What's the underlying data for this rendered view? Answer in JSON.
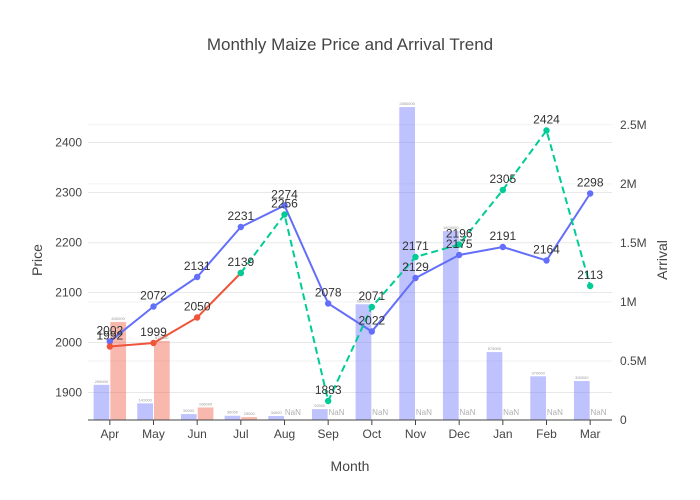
{
  "chart_data": {
    "type": "bar",
    "title": "Monthly Maize Price and Arrival Trend",
    "xlabel": "Month",
    "ylabel": "Price",
    "y2label": "Arrival",
    "categories": [
      "Apr",
      "May",
      "Jun",
      "Jul",
      "Aug",
      "Sep",
      "Oct",
      "Nov",
      "Dec",
      "Jan",
      "Feb",
      "Mar"
    ],
    "ylim": [
      1845,
      2485
    ],
    "y2lim": [
      0,
      2710000
    ],
    "yticks": [
      1900,
      2000,
      2100,
      2200,
      2300,
      2400
    ],
    "y2ticks": [
      {
        "value": 0,
        "label": "0"
      },
      {
        "value": 500000,
        "label": "0.5M"
      },
      {
        "value": 1000000,
        "label": "1M"
      },
      {
        "value": 1500000,
        "label": "1.5M"
      },
      {
        "value": 2000000,
        "label": "2M"
      },
      {
        "value": 2500000,
        "label": "2.5M"
      }
    ],
    "line_series": [
      {
        "color": "#636efa",
        "dash": "solid",
        "values": [
          2002,
          2072,
          2131,
          2231,
          2274,
          2078,
          2022,
          2129,
          2175,
          2191,
          2164,
          2298
        ],
        "labels": [
          "2002",
          "2072",
          "2131",
          "2231",
          "2274",
          "2078",
          "2022",
          "2129",
          "2175",
          "2191",
          "2164",
          "2298"
        ]
      },
      {
        "color": "#ef553b",
        "dash": "solid",
        "values": [
          1992,
          1999,
          2050,
          2139,
          null,
          null,
          null,
          null,
          null,
          null,
          null,
          null
        ],
        "labels": [
          "1992",
          "1999",
          "2050",
          "2139",
          "",
          "",
          "",
          "",
          "",
          "",
          "",
          ""
        ]
      },
      {
        "color": "#00cc96",
        "dash": "dash",
        "values": [
          null,
          null,
          null,
          2139,
          2256,
          1883,
          2071,
          2171,
          2196,
          2305,
          2424,
          2113
        ],
        "labels": [
          "",
          "",
          "",
          "",
          "2256",
          "1883",
          "2071",
          "2171",
          "2196",
          "2305",
          "2424",
          "2113"
        ]
      }
    ],
    "bar_series": [
      {
        "color": "#636efa",
        "values": [
          298000,
          141000,
          50000,
          36000,
          34000,
          92000,
          980000,
          2650000,
          1600000,
          575000,
          370000,
          330000
        ],
        "labels": [
          "298000",
          "141000",
          "50000",
          "36000",
          "34000",
          "92000",
          "980000",
          "2650000",
          "1600000",
          "575000",
          "370000",
          "330000"
        ]
      },
      {
        "color": "#ef553b",
        "values": [
          830000,
          670000,
          106000,
          25000,
          null,
          null,
          null,
          null,
          null,
          null,
          null,
          null
        ],
        "labels": [
          "830000",
          "670000",
          "106000",
          "25000",
          "NaN",
          "NaN",
          "NaN",
          "NaN",
          "NaN",
          "NaN",
          "NaN",
          "NaN"
        ]
      }
    ]
  }
}
